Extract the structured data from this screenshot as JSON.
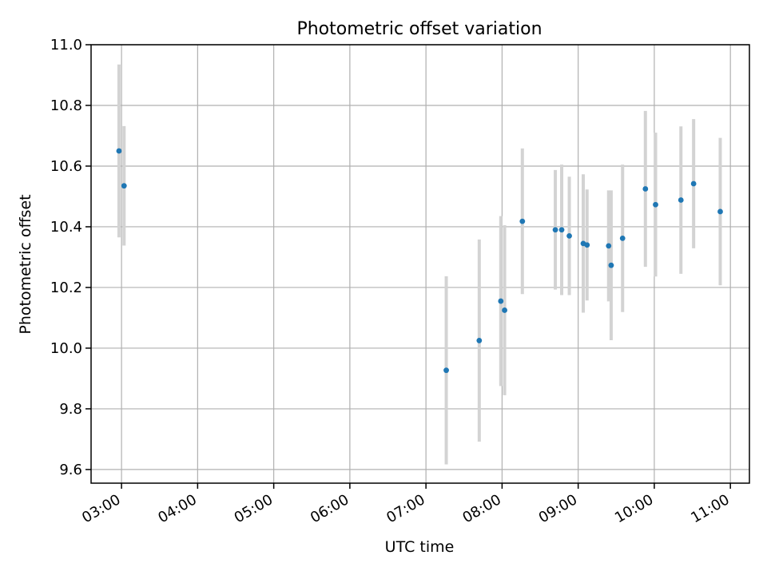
{
  "chart_data": {
    "type": "scatter",
    "title": "Photometric offset variation",
    "xlabel": "UTC time",
    "ylabel": "Photometric offset",
    "x_tick_labels": [
      "03:00",
      "04:00",
      "05:00",
      "06:00",
      "07:00",
      "08:00",
      "09:00",
      "10:00",
      "11:00"
    ],
    "x_tick_hours": [
      3,
      4,
      5,
      6,
      7,
      8,
      9,
      10,
      11
    ],
    "xlim_hours": [
      2.6,
      11.25
    ],
    "y_tick_labels": [
      "9.6",
      "9.8",
      "10.0",
      "10.2",
      "10.4",
      "10.6",
      "10.8",
      "11.0"
    ],
    "y_ticks": [
      9.6,
      9.8,
      10.0,
      10.2,
      10.4,
      10.6,
      10.8,
      11.0
    ],
    "ylim": [
      9.555,
      11.0
    ],
    "grid": true,
    "colors": {
      "point": "#1f77b4",
      "errorbar": "#d3d3d3",
      "grid": "#b0b0b0"
    },
    "points": [
      {
        "time": "02:58",
        "y": 10.65,
        "yerr": 0.285
      },
      {
        "time": "03:02",
        "y": 10.535,
        "yerr": 0.197
      },
      {
        "time": "07:16",
        "y": 9.927,
        "yerr": 0.31
      },
      {
        "time": "07:42",
        "y": 10.025,
        "yerr": 0.333
      },
      {
        "time": "07:59",
        "y": 10.155,
        "yerr": 0.28
      },
      {
        "time": "08:02",
        "y": 10.125,
        "yerr": 0.28
      },
      {
        "time": "08:16",
        "y": 10.418,
        "yerr": 0.24
      },
      {
        "time": "08:42",
        "y": 10.39,
        "yerr": 0.197
      },
      {
        "time": "08:47",
        "y": 10.39,
        "yerr": 0.215
      },
      {
        "time": "08:53",
        "y": 10.37,
        "yerr": 0.195
      },
      {
        "time": "09:04",
        "y": 10.345,
        "yerr": 0.228
      },
      {
        "time": "09:07",
        "y": 10.34,
        "yerr": 0.183
      },
      {
        "time": "09:24",
        "y": 10.337,
        "yerr": 0.183
      },
      {
        "time": "09:26",
        "y": 10.273,
        "yerr": 0.247
      },
      {
        "time": "09:35",
        "y": 10.362,
        "yerr": 0.243
      },
      {
        "time": "09:53",
        "y": 10.525,
        "yerr": 0.257
      },
      {
        "time": "10:01",
        "y": 10.473,
        "yerr": 0.237
      },
      {
        "time": "10:21",
        "y": 10.488,
        "yerr": 0.243
      },
      {
        "time": "10:31",
        "y": 10.542,
        "yerr": 0.213
      },
      {
        "time": "10:52",
        "y": 10.45,
        "yerr": 0.243
      }
    ]
  }
}
